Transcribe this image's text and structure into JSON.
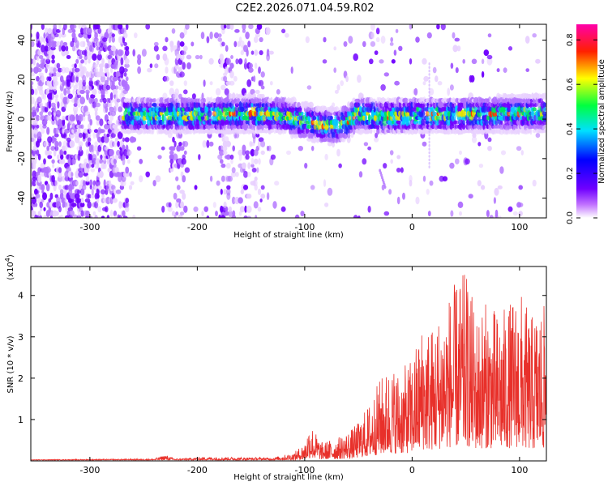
{
  "title": "C2E2.2026.071.04.59.R02",
  "chart_data": [
    {
      "type": "heatmap",
      "xlabel": "Height of straight line (km)",
      "ylabel": "Frequency (Hz)",
      "xlim": [
        -355,
        125
      ],
      "ylim": [
        -50,
        48
      ],
      "xticks": [
        -300,
        -200,
        -100,
        0,
        100
      ],
      "yticks": [
        -40,
        -20,
        0,
        20,
        40
      ],
      "grid": false,
      "signal_band_center_hz": [
        {
          "x": -265,
          "y": 2
        },
        {
          "x": -200,
          "y": 2
        },
        {
          "x": -150,
          "y": 3
        },
        {
          "x": -120,
          "y": 2
        },
        {
          "x": -100,
          "y": -1
        },
        {
          "x": -75,
          "y": -4
        },
        {
          "x": -60,
          "y": -2
        },
        {
          "x": -50,
          "y": 3
        },
        {
          "x": -30,
          "y": 1
        },
        {
          "x": 0,
          "y": 2
        },
        {
          "x": 50,
          "y": 2
        },
        {
          "x": 100,
          "y": 3
        },
        {
          "x": 125,
          "y": 3
        }
      ],
      "colorbar": {
        "label": "Normalized spectral amplitude",
        "ticks": [
          "0.0",
          "0.2",
          "0.4",
          "0.6",
          "0.8"
        ],
        "range": [
          0,
          0.87
        ],
        "colors": [
          "#ffffff",
          "#8800ff",
          "#0000ff",
          "#00ffff",
          "#00ff00",
          "#ffff00",
          "#ff0000",
          "#ff00aa"
        ]
      }
    },
    {
      "type": "line",
      "xlabel": "Height of straight line (km)",
      "ylabel": "SNR (10 * v/v)",
      "multiplier_label": "(x10",
      "multiplier_exp": "4",
      "xlim": [
        -355,
        125
      ],
      "ylim": [
        0,
        4.7
      ],
      "xticks": [
        -300,
        -200,
        -100,
        0,
        100
      ],
      "yticks": [
        1,
        2,
        3,
        4
      ],
      "series": [
        {
          "name": "SNR",
          "color": "#e8302a",
          "envelope": [
            {
              "x": -355,
              "y": 0.03
            },
            {
              "x": -240,
              "y": 0.05
            },
            {
              "x": -230,
              "y": 0.15
            },
            {
              "x": -220,
              "y": 0.05
            },
            {
              "x": -190,
              "y": 0.1
            },
            {
              "x": -130,
              "y": 0.08
            },
            {
              "x": -110,
              "y": 0.2
            },
            {
              "x": -100,
              "y": 0.45
            },
            {
              "x": -95,
              "y": 0.95
            },
            {
              "x": -85,
              "y": 0.45
            },
            {
              "x": -70,
              "y": 0.55
            },
            {
              "x": -55,
              "y": 0.8
            },
            {
              "x": -50,
              "y": 0.95
            },
            {
              "x": -40,
              "y": 1.4
            },
            {
              "x": -30,
              "y": 2.0
            },
            {
              "x": -20,
              "y": 2.3
            },
            {
              "x": -10,
              "y": 2.2
            },
            {
              "x": 0,
              "y": 2.5
            },
            {
              "x": 10,
              "y": 3.4
            },
            {
              "x": 20,
              "y": 3.3
            },
            {
              "x": 30,
              "y": 3.9
            },
            {
              "x": 40,
              "y": 4.3
            },
            {
              "x": 50,
              "y": 4.6
            },
            {
              "x": 60,
              "y": 3.6
            },
            {
              "x": 70,
              "y": 3.9
            },
            {
              "x": 80,
              "y": 3.6
            },
            {
              "x": 90,
              "y": 3.8
            },
            {
              "x": 100,
              "y": 4.2
            },
            {
              "x": 110,
              "y": 3.5
            },
            {
              "x": 120,
              "y": 3.8
            },
            {
              "x": 125,
              "y": 3.7
            }
          ]
        }
      ]
    }
  ]
}
